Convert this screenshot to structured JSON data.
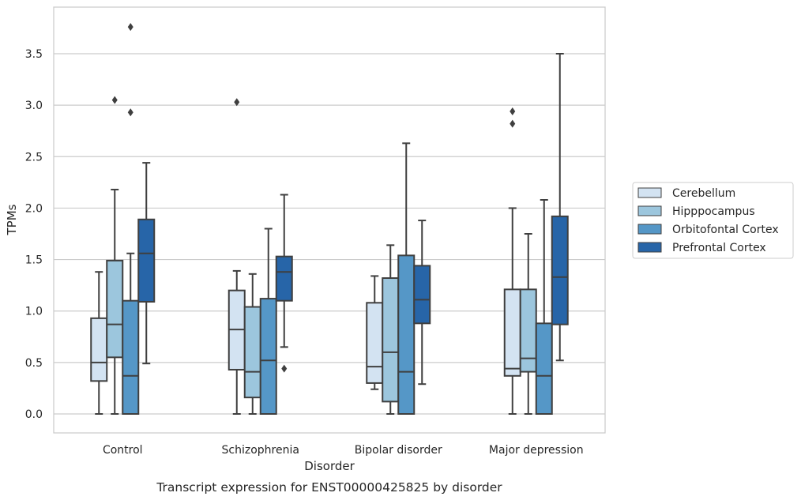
{
  "chart_data": {
    "type": "box",
    "caption": "Transcript expression for ENST00000425825 by disorder",
    "xlabel": "Disorder",
    "ylabel": "TPMs",
    "ylim": [
      -0.18,
      3.96
    ],
    "yticks": [
      0.0,
      0.5,
      1.0,
      1.5,
      2.0,
      2.5,
      3.0,
      3.5
    ],
    "ytick_labels": [
      "0.0",
      "0.5",
      "1.0",
      "1.5",
      "2.0",
      "2.5",
      "3.0",
      "3.5"
    ],
    "grid": "horizontal",
    "legend_position": "right",
    "categories": [
      "Control",
      "Schizophrenia",
      "Bipolar disorder",
      "Major depression"
    ],
    "series": [
      {
        "name": "Cerebellum",
        "color": "#d3e3f2",
        "boxes": [
          {
            "whislo": 0.0,
            "q1": 0.32,
            "med": 0.5,
            "q3": 0.93,
            "whishi": 1.38,
            "fliers": []
          },
          {
            "whislo": 0.0,
            "q1": 0.43,
            "med": 0.82,
            "q3": 1.2,
            "whishi": 1.39,
            "fliers": [
              3.03
            ]
          },
          {
            "whislo": 0.24,
            "q1": 0.3,
            "med": 0.46,
            "q3": 1.08,
            "whishi": 1.34,
            "fliers": []
          },
          {
            "whislo": 0.0,
            "q1": 0.37,
            "med": 0.44,
            "q3": 1.21,
            "whishi": 2.0,
            "fliers": [
              2.82,
              2.94
            ]
          }
        ]
      },
      {
        "name": "Hipppocampus",
        "color": "#9cc6dd",
        "boxes": [
          {
            "whislo": 0.0,
            "q1": 0.55,
            "med": 0.87,
            "q3": 1.49,
            "whishi": 2.18,
            "fliers": [
              3.05
            ]
          },
          {
            "whislo": 0.0,
            "q1": 0.16,
            "med": 0.41,
            "q3": 1.04,
            "whishi": 1.36,
            "fliers": []
          },
          {
            "whislo": 0.0,
            "q1": 0.12,
            "med": 0.6,
            "q3": 1.32,
            "whishi": 1.64,
            "fliers": []
          },
          {
            "whislo": 0.0,
            "q1": 0.41,
            "med": 0.54,
            "q3": 1.21,
            "whishi": 1.75,
            "fliers": []
          }
        ]
      },
      {
        "name": "Orbitofontal Cortex",
        "color": "#5597c7",
        "boxes": [
          {
            "whislo": 0.0,
            "q1": 0.0,
            "med": 0.37,
            "q3": 1.1,
            "whishi": 1.56,
            "fliers": [
              2.93,
              3.76
            ]
          },
          {
            "whislo": 0.0,
            "q1": 0.0,
            "med": 0.52,
            "q3": 1.12,
            "whishi": 1.8,
            "fliers": []
          },
          {
            "whislo": 0.0,
            "q1": 0.0,
            "med": 0.41,
            "q3": 1.54,
            "whishi": 2.63,
            "fliers": []
          },
          {
            "whislo": 0.0,
            "q1": 0.0,
            "med": 0.37,
            "q3": 0.88,
            "whishi": 2.08,
            "fliers": []
          }
        ]
      },
      {
        "name": "Prefrontal Cortex",
        "color": "#2765a8",
        "boxes": [
          {
            "whislo": 0.49,
            "q1": 1.09,
            "med": 1.56,
            "q3": 1.89,
            "whishi": 2.44,
            "fliers": []
          },
          {
            "whislo": 0.65,
            "q1": 1.1,
            "med": 1.38,
            "q3": 1.53,
            "whishi": 2.13,
            "fliers": [
              0.44
            ]
          },
          {
            "whislo": 0.29,
            "q1": 0.88,
            "med": 1.11,
            "q3": 1.44,
            "whishi": 1.88,
            "fliers": []
          },
          {
            "whislo": 0.52,
            "q1": 0.87,
            "med": 1.33,
            "q3": 1.92,
            "whishi": 3.5,
            "fliers": []
          }
        ]
      }
    ]
  }
}
